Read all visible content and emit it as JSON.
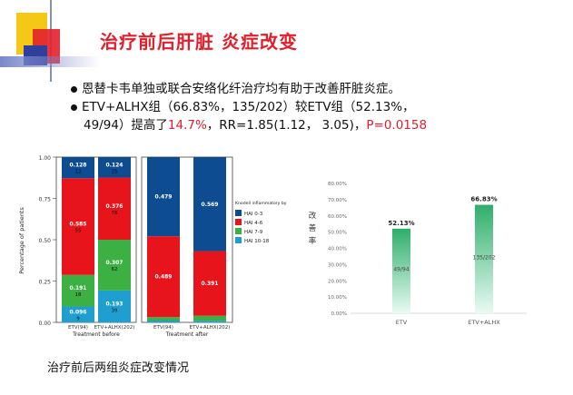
{
  "slide": {
    "title": "治疗前后肝脏 炎症改变",
    "bullet1": "恩替卡韦单独或联合安络化纤治疗均有助于改善肝脏炎症。",
    "bullet2_part1": "ETV+ALHX组（66.83%，135/202）较ETV组（52.13%，",
    "bullet2_part2": "49/94）提高了",
    "bullet2_highlight": "14.7%",
    "bullet2_part3": "，RR=1.85(1.12，  3.05)，",
    "bullet2_pvalue": "P=0.0158",
    "caption": "治疗前后两组炎症改变情况"
  },
  "chart_data": [
    {
      "type": "bar",
      "stacked": true,
      "ylabel": "Percentage of patients",
      "ylim": [
        0,
        1
      ],
      "yticks": [
        "0.00",
        "0.25",
        "0.50",
        "0.75",
        "1.00"
      ],
      "categories": [
        "ETV(94)",
        "ETV+ALHX(202)",
        "ETV(94)",
        "ETV+ALHX(202)"
      ],
      "groups": [
        "Treatment before",
        "Treatment after"
      ],
      "legend_title": "Knodell inflammatory by ishak score",
      "legend_position": "right",
      "series": [
        {
          "name": "HAI 0-3",
          "color": "#0e4c92",
          "values": [
            0.128,
            0.124,
            0.479,
            0.569
          ],
          "labels": [
            "0.128",
            "0.124",
            "0.479",
            "0.569"
          ],
          "counts": [
            "12",
            "25",
            "",
            ""
          ]
        },
        {
          "name": "HAI 4-6",
          "color": "#e8141c",
          "values": [
            0.585,
            0.376,
            0.489,
            0.391
          ],
          "labels": [
            "0.585",
            "0.376",
            "0.489",
            "0.391"
          ],
          "counts": [
            "55",
            "76",
            "",
            ""
          ]
        },
        {
          "name": "HAI 7-9",
          "color": "#3cb043",
          "values": [
            0.191,
            0.307,
            0.021,
            0.03
          ],
          "labels": [
            "0.191",
            "0.307",
            "0.021",
            "0.03"
          ],
          "counts": [
            "18",
            "62",
            "",
            ""
          ]
        },
        {
          "name": "HAI 10-18",
          "color": "#1e9fcf",
          "values": [
            0.096,
            0.193,
            0.011,
            0.01
          ],
          "labels": [
            "0.096",
            "0.193",
            "0.011",
            "0.01"
          ],
          "counts": [
            "9",
            "39",
            "",
            ""
          ]
        }
      ]
    },
    {
      "type": "bar",
      "ylabel": "改善率",
      "ylim": [
        0,
        80
      ],
      "yticks": [
        "0.00%",
        "10.00%",
        "20.00%",
        "30.00%",
        "40.00%",
        "50.00%",
        "60.00%",
        "70.00%",
        "80.00%"
      ],
      "categories": [
        "ETV",
        "ETV+ALHX"
      ],
      "values": [
        52.13,
        66.83
      ],
      "value_labels": [
        "52.13%",
        "66.83%"
      ],
      "inner_labels": [
        "49/94",
        "135/202"
      ],
      "color": "#2fae6a"
    }
  ]
}
